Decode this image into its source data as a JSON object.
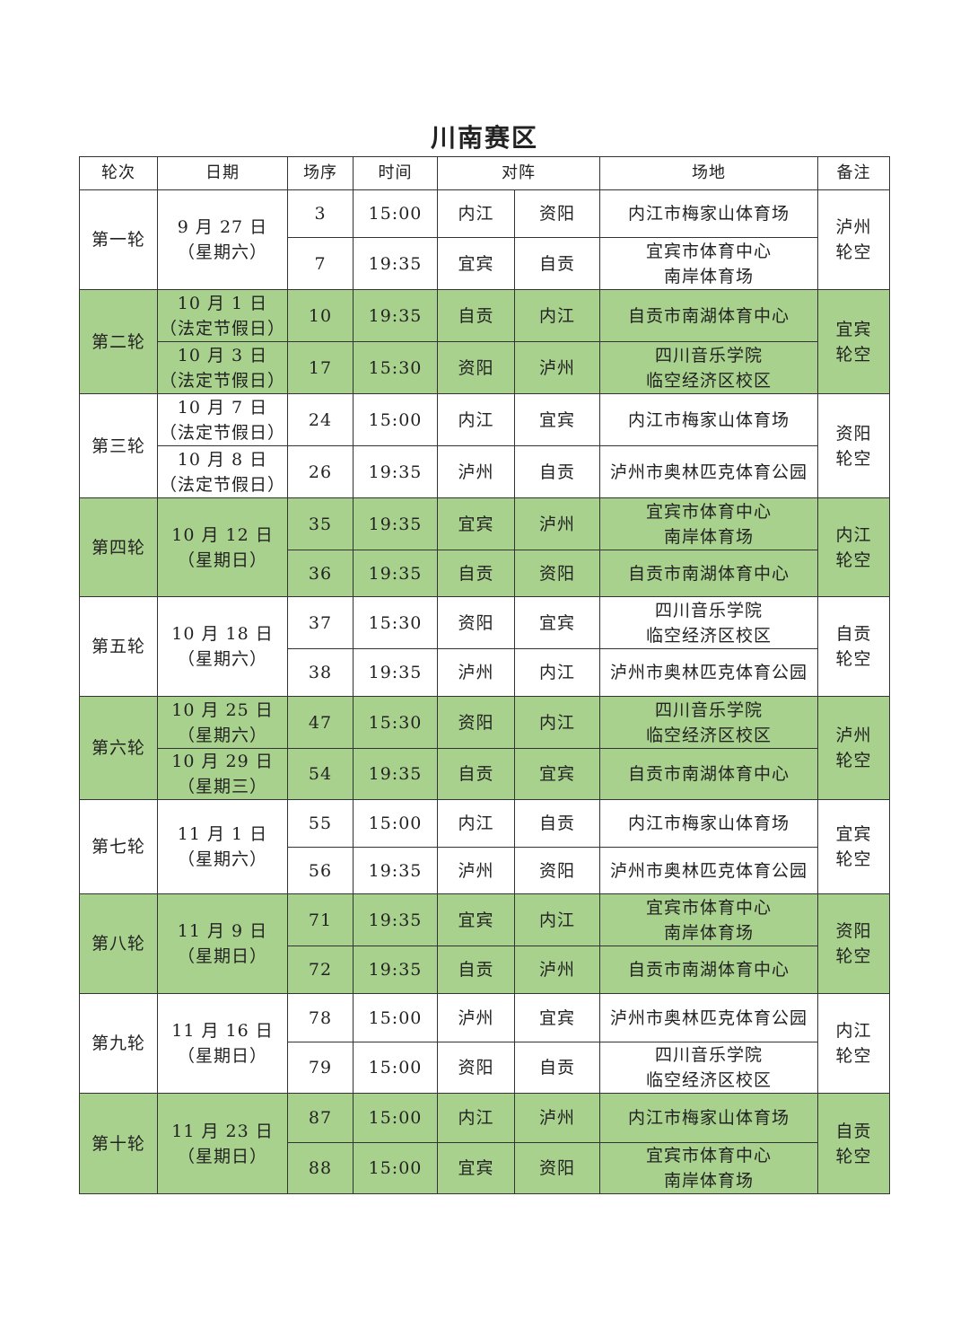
{
  "title": "川南赛区",
  "headers": [
    "轮次",
    "日期",
    "场序",
    "时间",
    "对阵",
    "场地",
    "备注"
  ],
  "colors": {
    "highlight": "#a9d18e",
    "border": "#333333"
  },
  "rounds": [
    {
      "label": "第一轮",
      "highlight": false,
      "note": "泸州\n轮空",
      "date": "9 月 27 日\n（星期六）",
      "matches": [
        {
          "no": "3",
          "time": "15:00",
          "home": "内江",
          "away": "资阳",
          "venue": "内江市梅家山体育场"
        },
        {
          "no": "7",
          "time": "19:35",
          "home": "宜宾",
          "away": "自贡",
          "venue": "宜宾市体育中心\n南岸体育场"
        }
      ]
    },
    {
      "label": "第二轮",
      "highlight": true,
      "note": "宜宾\n轮空",
      "matches": [
        {
          "date": "10 月 1 日\n（法定节假日）",
          "no": "10",
          "time": "19:35",
          "home": "自贡",
          "away": "内江",
          "venue": "自贡市南湖体育中心"
        },
        {
          "date": "10 月 3 日\n（法定节假日）",
          "no": "17",
          "time": "15:30",
          "home": "资阳",
          "away": "泸州",
          "venue": "四川音乐学院\n临空经济区校区"
        }
      ]
    },
    {
      "label": "第三轮",
      "highlight": false,
      "note": "资阳\n轮空",
      "matches": [
        {
          "date": "10 月 7 日\n（法定节假日）",
          "no": "24",
          "time": "15:00",
          "home": "内江",
          "away": "宜宾",
          "venue": "内江市梅家山体育场"
        },
        {
          "date": "10 月 8 日\n（法定节假日）",
          "no": "26",
          "time": "19:35",
          "home": "泸州",
          "away": "自贡",
          "venue": "泸州市奥林匹克体育公园"
        }
      ]
    },
    {
      "label": "第四轮",
      "highlight": true,
      "note": "内江\n轮空",
      "date": "10 月 12 日\n（星期日）",
      "matches": [
        {
          "no": "35",
          "time": "19:35",
          "home": "宜宾",
          "away": "泸州",
          "venue": "宜宾市体育中心\n南岸体育场"
        },
        {
          "no": "36",
          "time": "19:35",
          "home": "自贡",
          "away": "资阳",
          "venue": "自贡市南湖体育中心"
        }
      ]
    },
    {
      "label": "第五轮",
      "highlight": false,
      "note": "自贡\n轮空",
      "date": "10 月 18 日\n（星期六）",
      "matches": [
        {
          "no": "37",
          "time": "15:30",
          "home": "资阳",
          "away": "宜宾",
          "venue": "四川音乐学院\n临空经济区校区"
        },
        {
          "no": "38",
          "time": "19:35",
          "home": "泸州",
          "away": "内江",
          "venue": "泸州市奥林匹克体育公园"
        }
      ]
    },
    {
      "label": "第六轮",
      "highlight": true,
      "note": "泸州\n轮空",
      "matches": [
        {
          "date": "10 月 25 日\n（星期六）",
          "no": "47",
          "time": "15:30",
          "home": "资阳",
          "away": "内江",
          "venue": "四川音乐学院\n临空经济区校区"
        },
        {
          "date": "10 月 29 日\n（星期三）",
          "no": "54",
          "time": "19:35",
          "home": "自贡",
          "away": "宜宾",
          "venue": "自贡市南湖体育中心"
        }
      ]
    },
    {
      "label": "第七轮",
      "highlight": false,
      "note": "宜宾\n轮空",
      "date": "11 月 1 日\n（星期六）",
      "matches": [
        {
          "no": "55",
          "time": "15:00",
          "home": "内江",
          "away": "自贡",
          "venue": "内江市梅家山体育场"
        },
        {
          "no": "56",
          "time": "19:35",
          "home": "泸州",
          "away": "资阳",
          "venue": "泸州市奥林匹克体育公园"
        }
      ]
    },
    {
      "label": "第八轮",
      "highlight": true,
      "note": "资阳\n轮空",
      "date": "11 月 9 日\n（星期日）",
      "matches": [
        {
          "no": "71",
          "time": "19:35",
          "home": "宜宾",
          "away": "内江",
          "venue": "宜宾市体育中心\n南岸体育场"
        },
        {
          "no": "72",
          "time": "19:35",
          "home": "自贡",
          "away": "泸州",
          "venue": "自贡市南湖体育中心"
        }
      ]
    },
    {
      "label": "第九轮",
      "highlight": false,
      "note": "内江\n轮空",
      "date": "11 月 16 日\n（星期日）",
      "matches": [
        {
          "no": "78",
          "time": "15:00",
          "home": "泸州",
          "away": "宜宾",
          "venue": "泸州市奥林匹克体育公园"
        },
        {
          "no": "79",
          "time": "15:00",
          "home": "资阳",
          "away": "自贡",
          "venue": "四川音乐学院\n临空经济区校区"
        }
      ]
    },
    {
      "label": "第十轮",
      "highlight": true,
      "note": "自贡\n轮空",
      "date": "11 月 23 日\n（星期日）",
      "matches": [
        {
          "no": "87",
          "time": "15:00",
          "home": "内江",
          "away": "泸州",
          "venue": "内江市梅家山体育场"
        },
        {
          "no": "88",
          "time": "15:00",
          "home": "宜宾",
          "away": "资阳",
          "venue": "宜宾市体育中心\n南岸体育场"
        }
      ]
    }
  ]
}
